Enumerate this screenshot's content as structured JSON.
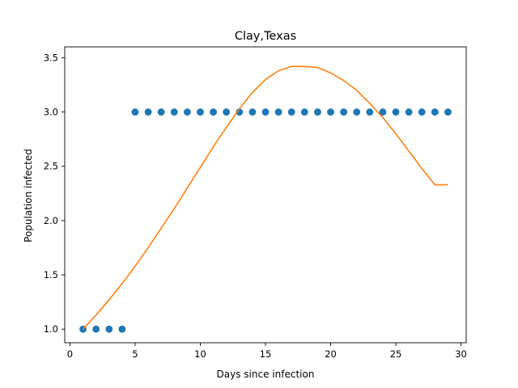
{
  "chart_data": {
    "type": "scatter",
    "title": "Clay,Texas",
    "xlabel": "Days since infection",
    "ylabel": "Population infected",
    "xlim": [
      -0.4,
      30.4
    ],
    "ylim": [
      0.875,
      3.6
    ],
    "xticks": [
      0,
      5,
      10,
      15,
      20,
      25,
      30
    ],
    "yticks": [
      1.0,
      1.5,
      2.0,
      2.5,
      3.0,
      3.5
    ],
    "xtick_labels": [
      "0",
      "5",
      "10",
      "15",
      "20",
      "25",
      "30"
    ],
    "ytick_labels": [
      "1.0",
      "1.5",
      "2.0",
      "2.5",
      "3.0",
      "3.5"
    ],
    "grid": false,
    "colors": {
      "points": "#1f77b4",
      "curve": "#ff7f0e"
    },
    "series": [
      {
        "kind": "scatter",
        "x": [
          1,
          2,
          3,
          4,
          5,
          6,
          7,
          8,
          9,
          10,
          11,
          12,
          13,
          14,
          15,
          16,
          17,
          18,
          19,
          20,
          21,
          22,
          23,
          24,
          25,
          26,
          27,
          28,
          29
        ],
        "y": [
          1,
          1,
          1,
          1,
          3,
          3,
          3,
          3,
          3,
          3,
          3,
          3,
          3,
          3,
          3,
          3,
          3,
          3,
          3,
          3,
          3,
          3,
          3,
          3,
          3,
          3,
          3,
          3,
          3
        ]
      },
      {
        "kind": "line",
        "x": [
          1,
          2,
          3,
          4,
          5,
          6,
          7,
          8,
          9,
          10,
          11,
          12,
          13,
          14,
          15,
          16,
          17,
          18,
          19,
          20,
          21,
          22,
          23,
          24,
          25,
          26,
          27,
          28,
          29
        ],
        "y": [
          1.0,
          1.13,
          1.27,
          1.42,
          1.58,
          1.75,
          1.93,
          2.11,
          2.3,
          2.49,
          2.68,
          2.86,
          3.03,
          3.18,
          3.3,
          3.38,
          3.42,
          3.42,
          3.41,
          3.36,
          3.29,
          3.2,
          3.08,
          2.95,
          2.8,
          2.64,
          2.48,
          2.33,
          2.33
        ]
      }
    ]
  }
}
